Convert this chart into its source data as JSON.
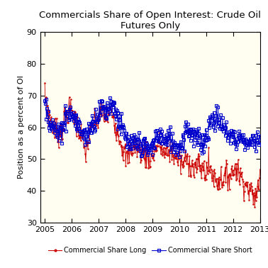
{
  "title_line1": "Commercials Share of Open Interest: Crude Oil",
  "title_line2": "Futures Only",
  "ylabel": "Position as a percent of OI",
  "ylim": [
    30,
    90
  ],
  "yticks": [
    30,
    40,
    50,
    60,
    70,
    80,
    90
  ],
  "xlim": [
    2004.83,
    2013.0
  ],
  "xticks": [
    2005,
    2006,
    2007,
    2008,
    2009,
    2010,
    2011,
    2012,
    2013
  ],
  "bg_color": "#FFFEF0",
  "line_long_color": "#CC0000",
  "line_short_color": "#0000CC",
  "legend_long": "Commercial Share Long",
  "legend_short": "Commercial Share Short",
  "title_fontsize": 9.5,
  "tick_fontsize": 8,
  "ylabel_fontsize": 8
}
